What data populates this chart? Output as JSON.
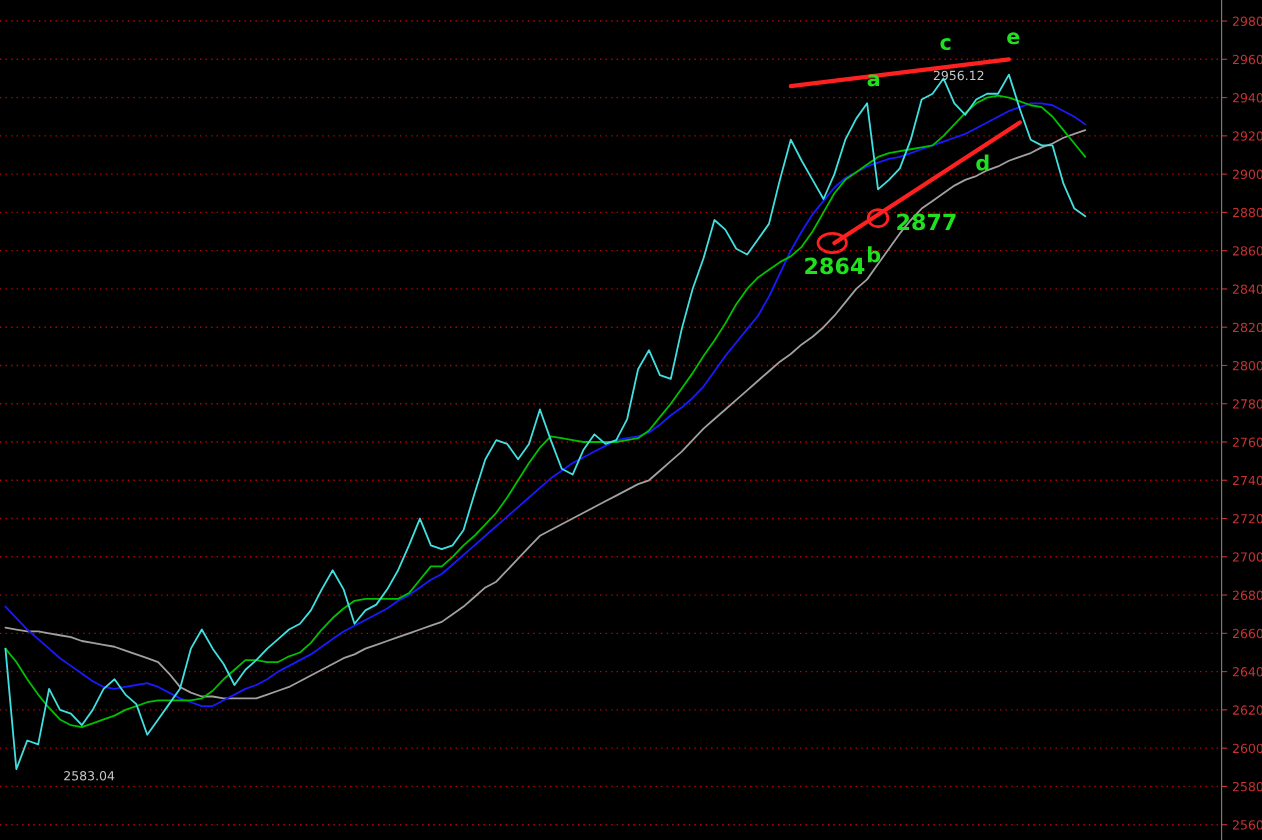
{
  "chart_data": {
    "type": "line",
    "categories": [
      null,
      null,
      null,
      null,
      null,
      null,
      null,
      null,
      null,
      null,
      null,
      null,
      null,
      null,
      null,
      null,
      null,
      null,
      null,
      null,
      null,
      null,
      null,
      null,
      null,
      null,
      null,
      null,
      null,
      null,
      null,
      null,
      null,
      null,
      null,
      null,
      null,
      null,
      null,
      null,
      null,
      null,
      null,
      null,
      null,
      null,
      null,
      null,
      null,
      null,
      null,
      null,
      null,
      null,
      null,
      null,
      null,
      null,
      null,
      null,
      null,
      null,
      null,
      null,
      null,
      null,
      null,
      null,
      null,
      null,
      null,
      null,
      null,
      null,
      null,
      null,
      null,
      null,
      null,
      null,
      null,
      null,
      null,
      null,
      null,
      null,
      null,
      null,
      null,
      null,
      null,
      null,
      null,
      null,
      null,
      null,
      null,
      null,
      null,
      null
    ],
    "series": [
      {
        "color": "#a0a0a0",
        "values": [
          2663,
          2662,
          2661,
          2661,
          2660,
          2659,
          2658,
          2656,
          2655,
          2654,
          2653,
          2651,
          2649,
          2647,
          2645,
          2639,
          2632,
          2629,
          2627,
          2627,
          2626,
          2626,
          2626,
          2626,
          2628,
          2630,
          2632,
          2635,
          2638,
          2641,
          2644,
          2647,
          2649,
          2652,
          2654,
          2656,
          2658,
          2660,
          2662,
          2664,
          2666,
          2670,
          2674,
          2679,
          2684,
          2687,
          2693,
          2699,
          2705,
          2711,
          2714,
          2717,
          2720,
          2723,
          2726,
          2729,
          2732,
          2735,
          2738,
          2740,
          2745,
          2750,
          2755,
          2761,
          2767,
          2772,
          2777,
          2782,
          2787,
          2792,
          2797,
          2802,
          2806,
          2811,
          2815,
          2820,
          2826,
          2833,
          2840,
          2845,
          2853,
          2861,
          2869,
          2876,
          2882,
          2886,
          2890,
          2894,
          2897,
          2899,
          2902,
          2904,
          2907,
          2909,
          2911,
          2914,
          2916,
          2919,
          2921,
          2923
        ]
      },
      {
        "color": "#1a1aff",
        "values": [
          2674,
          2668,
          2662,
          2657,
          2652,
          2647,
          2643,
          2639,
          2635,
          2632,
          2631,
          2632,
          2633,
          2634,
          2632,
          2629,
          2626,
          2624,
          2622,
          2622,
          2625,
          2628,
          2631,
          2633,
          2636,
          2640,
          2643,
          2646,
          2649,
          2653,
          2657,
          2661,
          2664,
          2667,
          2670,
          2673,
          2677,
          2680,
          2684,
          2688,
          2691,
          2696,
          2701,
          2706,
          2711,
          2716,
          2721,
          2726,
          2731,
          2736,
          2741,
          2745,
          2749,
          2752,
          2755,
          2758,
          2761,
          2762,
          2763,
          2765,
          2769,
          2774,
          2778,
          2783,
          2789,
          2797,
          2805,
          2812,
          2819,
          2826,
          2836,
          2848,
          2860,
          2870,
          2879,
          2886,
          2893,
          2898,
          2901,
          2904,
          2906,
          2908,
          2909,
          2911,
          2913,
          2915,
          2917,
          2919,
          2921,
          2924,
          2927,
          2930,
          2933,
          2935,
          2937,
          2937,
          2936,
          2933,
          2930,
          2926
        ]
      },
      {
        "color": "#00c000",
        "values": [
          2652,
          2645,
          2636,
          2628,
          2621,
          2615,
          2612,
          2611,
          2613,
          2615,
          2617,
          2620,
          2622,
          2624,
          2625,
          2625,
          2625,
          2625,
          2626,
          2630,
          2636,
          2641,
          2646,
          2646,
          2645,
          2645,
          2648,
          2650,
          2655,
          2662,
          2668,
          2673,
          2677,
          2678,
          2678,
          2678,
          2678,
          2681,
          2688,
          2695,
          2695,
          2700,
          2706,
          2711,
          2717,
          2723,
          2731,
          2740,
          2749,
          2757,
          2763,
          2762,
          2761,
          2760,
          2760,
          2760,
          2760,
          2761,
          2762,
          2766,
          2773,
          2780,
          2788,
          2796,
          2805,
          2813,
          2822,
          2832,
          2840,
          2846,
          2850,
          2854,
          2857,
          2862,
          2870,
          2880,
          2890,
          2897,
          2901,
          2905,
          2909,
          2911,
          2912,
          2913,
          2914,
          2915,
          2920,
          2926,
          2932,
          2937,
          2940,
          2941,
          2940,
          2938,
          2936,
          2935,
          2930,
          2923,
          2916,
          2909
        ]
      },
      {
        "color": "#40e0e0",
        "values": [
          2652,
          2589,
          2604,
          2602,
          2631,
          2620,
          2618,
          2612,
          2620,
          2631,
          2636,
          2628,
          2623,
          2607,
          2615,
          2623,
          2631,
          2652,
          2662,
          2652,
          2644,
          2633,
          2641,
          2646,
          2652,
          2657,
          2662,
          2665,
          2672,
          2683,
          2693,
          2683,
          2665,
          2672,
          2675,
          2683,
          2693,
          2706,
          2720,
          2706,
          2704,
          2706,
          2714,
          2733,
          2751,
          2761,
          2759,
          2751,
          2759,
          2777,
          2761,
          2746,
          2743,
          2756,
          2764,
          2759,
          2761,
          2772,
          2798,
          2808,
          2795,
          2793,
          2819,
          2840,
          2856,
          2876,
          2871,
          2861,
          2858,
          2866,
          2874,
          2897,
          2918,
          2907,
          2897,
          2887,
          2900,
          2918,
          2929,
          2937,
          2892,
          2897,
          2903,
          2918,
          2939,
          2942,
          2950,
          2937,
          2931,
          2939,
          2942,
          2942,
          2952,
          2934,
          2918,
          2915,
          2915,
          2895,
          2882,
          2878
        ]
      },
      {
        "color": "#ff2020",
        "values": [
          null,
          null,
          null,
          null,
          null,
          null,
          null,
          null,
          null,
          null,
          null,
          null,
          null,
          null,
          null,
          null,
          null,
          null,
          null,
          null,
          null,
          null,
          null,
          null,
          null,
          null,
          null,
          null,
          null,
          null,
          null,
          null,
          null,
          null,
          null,
          null,
          null,
          null,
          null,
          null,
          null,
          null,
          null,
          null,
          null,
          null,
          null,
          null,
          null,
          null,
          null,
          null,
          null,
          null,
          null,
          null,
          null,
          null,
          null,
          null,
          null,
          null,
          null,
          null,
          null,
          null,
          null,
          null,
          null,
          null,
          null,
          null,
          2946,
          null,
          null,
          null,
          null,
          null,
          null,
          null,
          null,
          null,
          null,
          null,
          null,
          null,
          null,
          null,
          null,
          null,
          null,
          null,
          2960,
          null,
          null,
          null,
          null,
          null,
          null,
          null
        ]
      },
      {
        "color": "#ff2020",
        "values": [
          null,
          null,
          null,
          null,
          null,
          null,
          null,
          null,
          null,
          null,
          null,
          null,
          null,
          null,
          null,
          null,
          null,
          null,
          null,
          null,
          null,
          null,
          null,
          null,
          null,
          null,
          null,
          null,
          null,
          null,
          null,
          null,
          null,
          null,
          null,
          null,
          null,
          null,
          null,
          null,
          null,
          null,
          null,
          null,
          null,
          null,
          null,
          null,
          null,
          null,
          null,
          null,
          null,
          null,
          null,
          null,
          null,
          null,
          null,
          null,
          null,
          null,
          null,
          null,
          null,
          null,
          null,
          null,
          null,
          null,
          null,
          null,
          null,
          null,
          null,
          null,
          2864,
          null,
          null,
          null,
          null,
          null,
          null,
          null,
          null,
          null,
          null,
          null,
          null,
          null,
          null,
          null,
          null,
          2927,
          null,
          null,
          null,
          null,
          null,
          null
        ]
      }
    ],
    "ylim": [
      2552,
      2991
    ],
    "yticks": [
      2560,
      2580,
      2600,
      2620,
      2640,
      2660,
      2680,
      2700,
      2720,
      2740,
      2760,
      2780,
      2800,
      2820,
      2840,
      2860,
      2880,
      2900,
      2920,
      2940,
      2960,
      2980
    ],
    "grid": "y",
    "tick_labels": "y",
    "annotations": [
      "a",
      "b",
      "c",
      "d",
      "e",
      "2864",
      "2877",
      "2956.12",
      "2583.04"
    ]
  }
}
